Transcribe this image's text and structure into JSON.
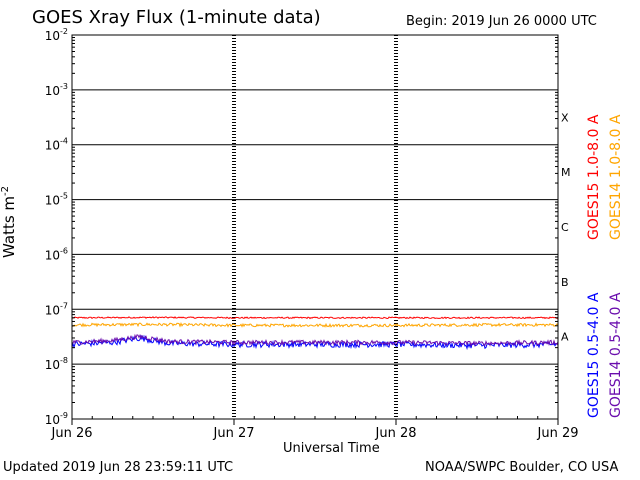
{
  "header": {
    "title": "GOES Xray Flux (1-minute data)",
    "begin_label": "Begin:  2019 Jun 26 0000 UTC"
  },
  "footer": {
    "updated": "Updated 2019 Jun 28 23:59:11 UTC",
    "credit": "NOAA/SWPC Boulder, CO USA"
  },
  "chart_data": {
    "type": "line",
    "title": "GOES Xray Flux (1-minute data)",
    "xlabel": "Universal Time",
    "ylabel": "Watts m",
    "ylabel_superscript": "-2",
    "y_scale": "log",
    "ylim": [
      1e-09,
      0.01
    ],
    "y_ticks": [
      {
        "base": "10",
        "exp": "-9",
        "value": 1e-09
      },
      {
        "base": "10",
        "exp": "-8",
        "value": 1e-08
      },
      {
        "base": "10",
        "exp": "-7",
        "value": 1e-07
      },
      {
        "base": "10",
        "exp": "-6",
        "value": 1e-06
      },
      {
        "base": "10",
        "exp": "-5",
        "value": 1e-05
      },
      {
        "base": "10",
        "exp": "-4",
        "value": 0.0001
      },
      {
        "base": "10",
        "exp": "-3",
        "value": 0.001
      },
      {
        "base": "10",
        "exp": "-2",
        "value": 0.01
      }
    ],
    "x_ticks": [
      {
        "label": "Jun 26",
        "day": 0
      },
      {
        "label": "Jun 27",
        "day": 1
      },
      {
        "label": "Jun 28",
        "day": 2
      },
      {
        "label": "Jun 29",
        "day": 3
      }
    ],
    "xlim": [
      0,
      3
    ],
    "flare_classes": [
      {
        "label": "A",
        "value": 3.16e-08
      },
      {
        "label": "B",
        "value": 3.16e-07
      },
      {
        "label": "C",
        "value": 3.16e-06
      },
      {
        "label": "M",
        "value": 3.16e-05
      },
      {
        "label": "X",
        "value": 0.000316
      }
    ],
    "series": [
      {
        "name": "GOES15 1.0-8.0 A",
        "color": "#ff0000",
        "x": [
          0,
          0.5,
          1,
          1.5,
          2,
          2.5,
          3
        ],
        "y": [
          7e-08,
          7.1e-08,
          7e-08,
          7e-08,
          7e-08,
          7e-08,
          7e-08
        ]
      },
      {
        "name": "GOES14 1.0-8.0 A",
        "color": "#ffa500",
        "x": [
          0,
          0.5,
          1,
          1.5,
          2,
          2.5,
          3
        ],
        "y": [
          5.2e-08,
          5.3e-08,
          5.1e-08,
          5.1e-08,
          5.1e-08,
          5.2e-08,
          5.2e-08
        ]
      },
      {
        "name": "GOES15 0.5-4.0 A",
        "color": "#0000ff",
        "x": [
          0,
          0.25,
          0.42,
          0.6,
          1,
          1.5,
          2,
          2.5,
          3
        ],
        "y": [
          2.3e-08,
          2.5e-08,
          3e-08,
          2.4e-08,
          2.3e-08,
          2.3e-08,
          2.3e-08,
          2.2e-08,
          2.3e-08
        ]
      },
      {
        "name": "GOES14 0.5-4.0 A",
        "color": "#6a0dad",
        "x": [
          0,
          0.25,
          0.42,
          0.6,
          1,
          1.5,
          2,
          2.5,
          3
        ],
        "y": [
          2.5e-08,
          2.7e-08,
          3.2e-08,
          2.6e-08,
          2.5e-08,
          2.5e-08,
          2.5e-08,
          2.4e-08,
          2.5e-08
        ]
      }
    ],
    "legend_placement": "right, vertical"
  }
}
